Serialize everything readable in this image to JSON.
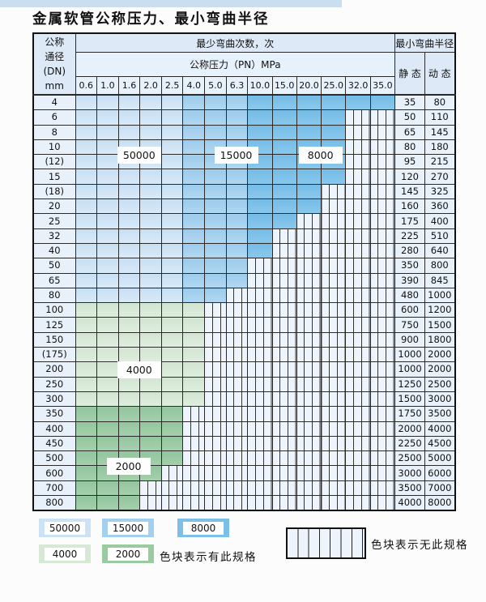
{
  "title": "金属软管公称压力、最小弯曲半径",
  "table": {
    "corner_header_lines": [
      "公称",
      "通径",
      "(DN)",
      "mm"
    ],
    "cycles_header": "最少弯曲次数，次",
    "pressure_header": "公称压力（PN）MPa",
    "radius_header": "最小弯曲半径",
    "static_header": "静 态",
    "dynamic_header": "动 态",
    "pressure_columns": [
      "0.6",
      "1.0",
      "1.6",
      "2.0",
      "2.5",
      "4.0",
      "5.0",
      "6.3",
      "10.0",
      "15.0",
      "20.0",
      "25.0",
      "32.0",
      "35.0"
    ],
    "blue_cycle_bands": [
      {
        "cycles": "50000",
        "from_col": "0.6",
        "to_col": "2.5"
      },
      {
        "cycles": "15000",
        "from_col": "4.0",
        "to_col": "6.3"
      },
      {
        "cycles": "8000",
        "from_col": "10.0",
        "to_col": "35.0"
      }
    ],
    "rows": [
      {
        "dn": "4",
        "zone": "blue",
        "max_pn": "35.0",
        "static": "35",
        "dynamic": "80"
      },
      {
        "dn": "6",
        "zone": "blue",
        "max_pn": "25.0",
        "static": "50",
        "dynamic": "110"
      },
      {
        "dn": "8",
        "zone": "blue",
        "max_pn": "25.0",
        "static": "65",
        "dynamic": "145"
      },
      {
        "dn": "10",
        "zone": "blue",
        "max_pn": "25.0",
        "static": "80",
        "dynamic": "180"
      },
      {
        "dn": "(12)",
        "zone": "blue",
        "max_pn": "25.0",
        "static": "95",
        "dynamic": "215"
      },
      {
        "dn": "15",
        "zone": "blue",
        "max_pn": "25.0",
        "static": "120",
        "dynamic": "270"
      },
      {
        "dn": "(18)",
        "zone": "blue",
        "max_pn": "20.0",
        "static": "145",
        "dynamic": "325"
      },
      {
        "dn": "20",
        "zone": "blue",
        "max_pn": "20.0",
        "static": "160",
        "dynamic": "360"
      },
      {
        "dn": "25",
        "zone": "blue",
        "max_pn": "15.0",
        "static": "175",
        "dynamic": "400"
      },
      {
        "dn": "32",
        "zone": "blue",
        "max_pn": "10.0",
        "static": "225",
        "dynamic": "510"
      },
      {
        "dn": "40",
        "zone": "blue",
        "max_pn": "10.0",
        "static": "280",
        "dynamic": "640"
      },
      {
        "dn": "50",
        "zone": "blue",
        "max_pn": "6.3",
        "static": "350",
        "dynamic": "800"
      },
      {
        "dn": "65",
        "zone": "blue",
        "max_pn": "6.3",
        "static": "390",
        "dynamic": "845"
      },
      {
        "dn": "80",
        "zone": "blue",
        "max_pn": "5.0",
        "static": "480",
        "dynamic": "1000"
      },
      {
        "dn": "100",
        "zone": "green_4000",
        "max_pn": "4.0",
        "static": "600",
        "dynamic": "1200"
      },
      {
        "dn": "125",
        "zone": "green_4000",
        "max_pn": "4.0",
        "static": "750",
        "dynamic": "1500"
      },
      {
        "dn": "150",
        "zone": "green_4000",
        "max_pn": "4.0",
        "static": "900",
        "dynamic": "1800"
      },
      {
        "dn": "(175)",
        "zone": "green_4000",
        "max_pn": "4.0",
        "static": "1000",
        "dynamic": "2000"
      },
      {
        "dn": "200",
        "zone": "green_4000",
        "max_pn": "4.0",
        "static": "1000",
        "dynamic": "2000"
      },
      {
        "dn": "250",
        "zone": "green_4000",
        "max_pn": "4.0",
        "static": "1250",
        "dynamic": "2500"
      },
      {
        "dn": "300",
        "zone": "green_4000",
        "max_pn": "4.0",
        "static": "1500",
        "dynamic": "3000"
      },
      {
        "dn": "350",
        "zone": "green_2000",
        "max_pn": "2.5",
        "static": "1750",
        "dynamic": "3500"
      },
      {
        "dn": "400",
        "zone": "green_2000",
        "max_pn": "2.5",
        "static": "2000",
        "dynamic": "4000"
      },
      {
        "dn": "450",
        "zone": "green_2000",
        "max_pn": "2.5",
        "static": "2250",
        "dynamic": "4500"
      },
      {
        "dn": "500",
        "zone": "green_2000",
        "max_pn": "2.5",
        "static": "2500",
        "dynamic": "5000"
      },
      {
        "dn": "600",
        "zone": "green_2000",
        "max_pn": "2.0",
        "static": "3000",
        "dynamic": "6000"
      },
      {
        "dn": "700",
        "zone": "green_2000",
        "max_pn": "1.6",
        "static": "3500",
        "dynamic": "7000"
      },
      {
        "dn": "800",
        "zone": "green_2000",
        "max_pn": "1.6",
        "static": "4000",
        "dynamic": "8000"
      }
    ],
    "cycle_region_labels": [
      {
        "text": "50000",
        "from_col": "1.6",
        "to_col": "2.0",
        "from_dn": "10",
        "to_dn": "(12)"
      },
      {
        "text": "15000",
        "from_col": "6.3",
        "to_col": "6.3",
        "from_dn": "10",
        "to_dn": "(12)"
      },
      {
        "text": "8000",
        "from_col": "20.0",
        "to_col": "25.0",
        "from_dn": "10",
        "to_dn": "(12)"
      },
      {
        "text": "4000",
        "from_col": "1.6",
        "to_col": "2.0",
        "from_dn": "200",
        "to_dn": "200"
      },
      {
        "text": "2000",
        "from_col": "1.6",
        "to_col": "1.6",
        "from_dn": "500",
        "to_dn": "600"
      }
    ]
  },
  "legend": {
    "present_items": [
      {
        "cycles": "50000",
        "zone": "blue_light"
      },
      {
        "cycles": "15000",
        "zone": "blue_mid"
      },
      {
        "cycles": "8000",
        "zone": "blue_dark"
      },
      {
        "cycles": "4000",
        "zone": "green_light"
      },
      {
        "cycles": "2000",
        "zone": "green_dark"
      }
    ],
    "present_caption": "色块表示有此规格",
    "absent_caption": "色块表示无此规格"
  },
  "colors": {
    "blue_light": "#cde2f4",
    "blue_mid": "#a2d0ee",
    "blue_dark": "#7cc0e8",
    "green_light": "#d7e8d6",
    "green_dark": "#9aca9f",
    "hatch_bg": "#eef4fb",
    "hatch_line": "#333333",
    "header_bg": "#dde9f6",
    "subheader_bg": "#e7f1fb",
    "label_col_bg": "#e8f1fa",
    "top_band": "#cbdeef",
    "label_box_bg": "#ffffff"
  }
}
